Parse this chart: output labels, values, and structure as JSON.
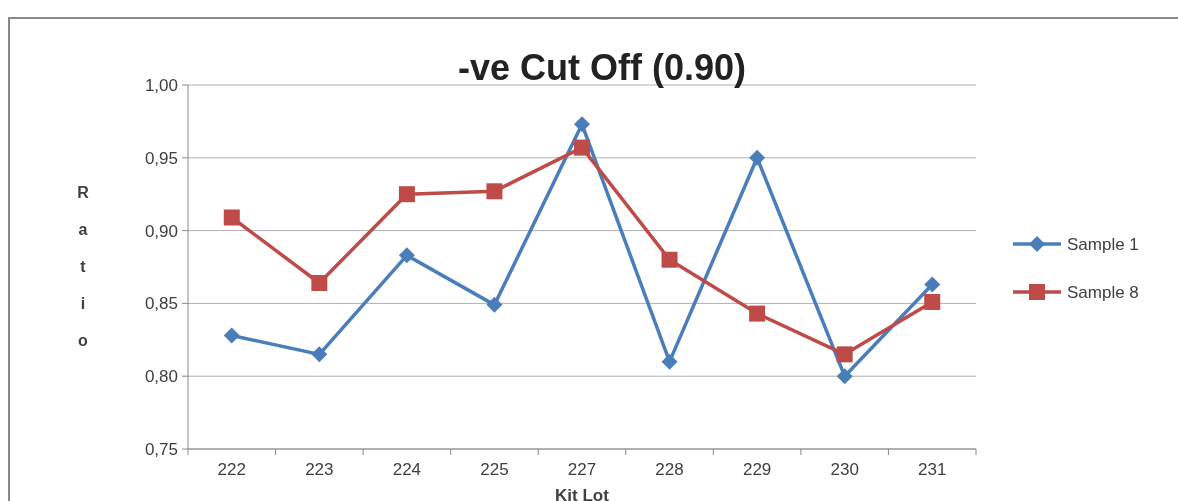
{
  "chart_data": {
    "type": "line",
    "title": "-ve Cut Off (0.90)",
    "xlabel": "Kit Lot",
    "ylabel": "Ratio",
    "categories": [
      "222",
      "223",
      "224",
      "225",
      "227",
      "228",
      "229",
      "230",
      "231"
    ],
    "series": [
      {
        "name": "Sample 1",
        "color": "#4a7ebb",
        "marker": "diamond",
        "values": [
          0.828,
          0.815,
          0.883,
          0.849,
          0.973,
          0.81,
          0.95,
          0.8,
          0.863
        ]
      },
      {
        "name": "Sample 8",
        "color": "#be4b48",
        "marker": "square",
        "values": [
          0.909,
          0.864,
          0.925,
          0.927,
          0.957,
          0.88,
          0.843,
          0.815,
          0.851
        ]
      }
    ],
    "ylim": [
      0.75,
      1.0
    ],
    "yticks": [
      {
        "value": 0.75,
        "label": "0,75"
      },
      {
        "value": 0.8,
        "label": "0,80"
      },
      {
        "value": 0.85,
        "label": "0,85"
      },
      {
        "value": 0.9,
        "label": "0,90"
      },
      {
        "value": 0.95,
        "label": "0,95"
      },
      {
        "value": 1.0,
        "label": "1,00"
      }
    ],
    "grid": "y",
    "legend": "right",
    "line_style": "solid"
  }
}
